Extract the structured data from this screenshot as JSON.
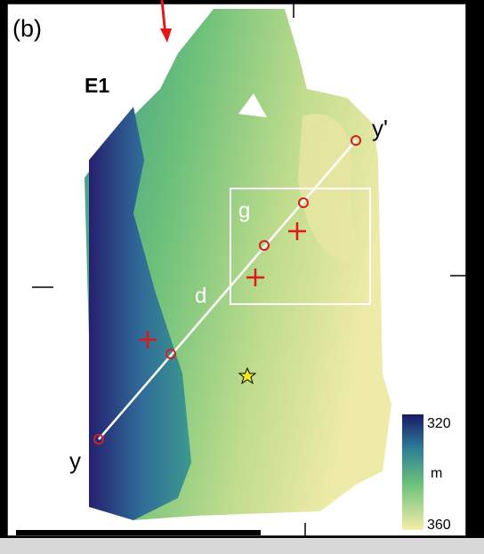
{
  "panel": {
    "label": "(b)",
    "site": "E1"
  },
  "profile": {
    "start_label": "y",
    "end_label": "y'"
  },
  "features": {
    "box_label": "g",
    "line_label": "d"
  },
  "colorbar": {
    "top": 320,
    "unit": "m",
    "bottom": 360
  }
}
